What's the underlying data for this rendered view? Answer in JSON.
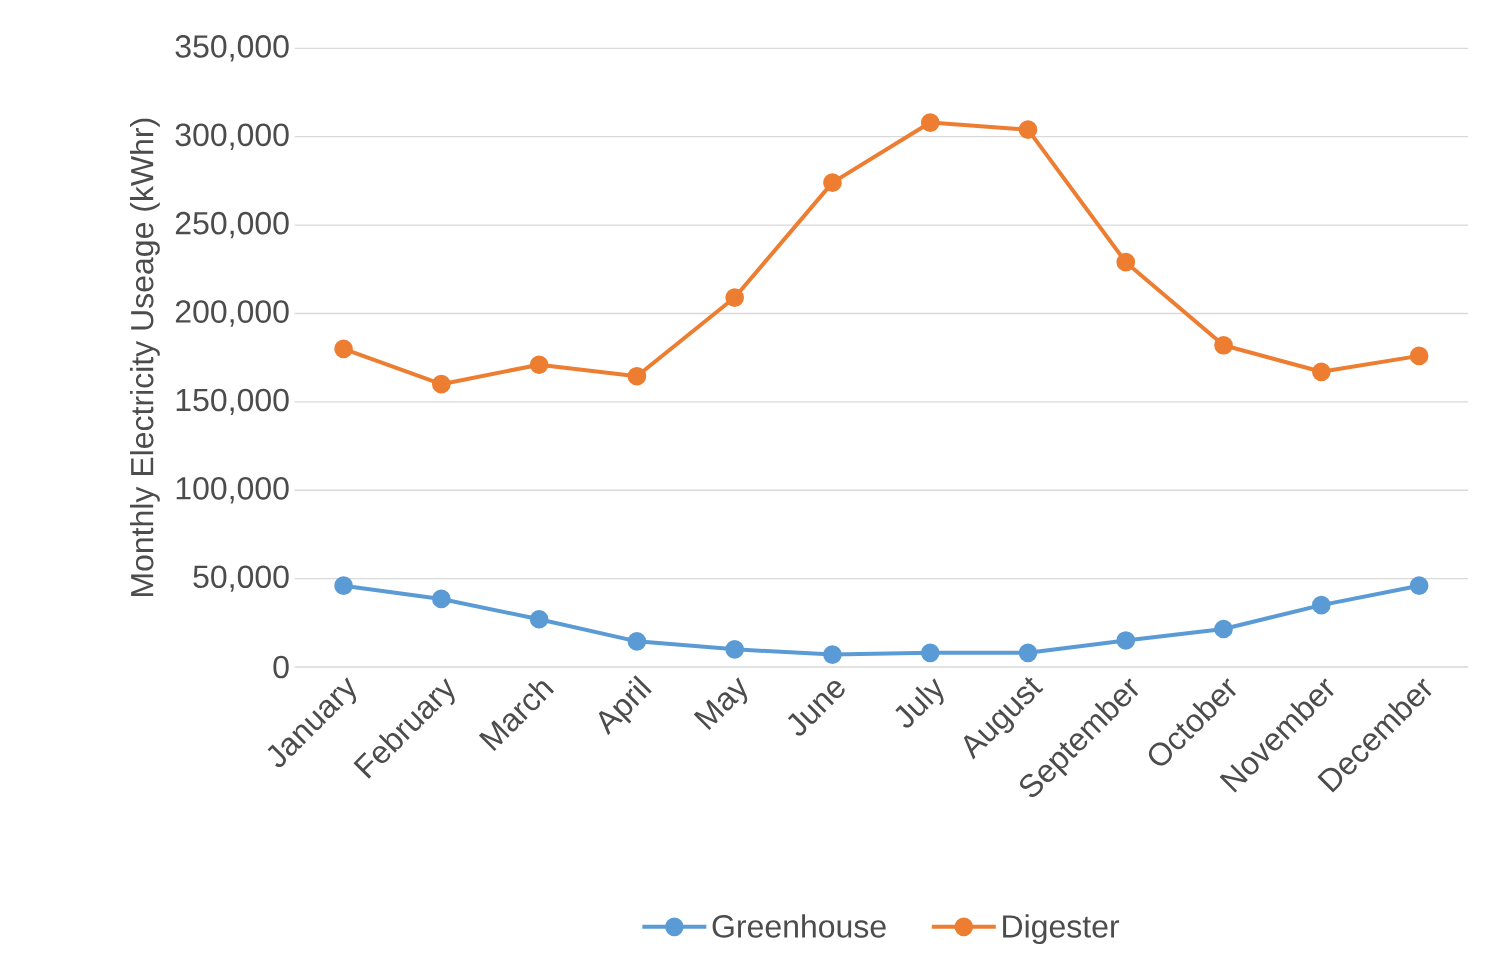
{
  "chart_data": {
    "type": "line",
    "ylabel": "Monthly Electricity Useage (kWhr)",
    "categories": [
      "January",
      "February",
      "March",
      "April",
      "May",
      "June",
      "July",
      "August",
      "September",
      "October",
      "November",
      "December"
    ],
    "series": [
      {
        "name": "Greenhouse",
        "color": "#5b9bd5",
        "values": [
          46000,
          38500,
          27000,
          14500,
          10000,
          7000,
          8000,
          8000,
          15000,
          21500,
          35000,
          46000
        ]
      },
      {
        "name": "Digester",
        "color": "#ed7d31",
        "values": [
          180000,
          160000,
          171000,
          164500,
          209000,
          274000,
          308000,
          304000,
          229000,
          182000,
          167000,
          176000
        ]
      }
    ],
    "ylim": [
      0,
      350000
    ],
    "yticks": [
      {
        "value": 0,
        "label": "0"
      },
      {
        "value": 50000,
        "label": "50,000"
      },
      {
        "value": 100000,
        "label": "100,000"
      },
      {
        "value": 150000,
        "label": "150,000"
      },
      {
        "value": 200000,
        "label": "200,000"
      },
      {
        "value": 250000,
        "label": "250,000"
      },
      {
        "value": 300000,
        "label": "300,000"
      },
      {
        "value": 350000,
        "label": "350,000"
      }
    ],
    "grid": "y",
    "legend": "bottom",
    "marker": "circle",
    "line_style": "solid"
  }
}
